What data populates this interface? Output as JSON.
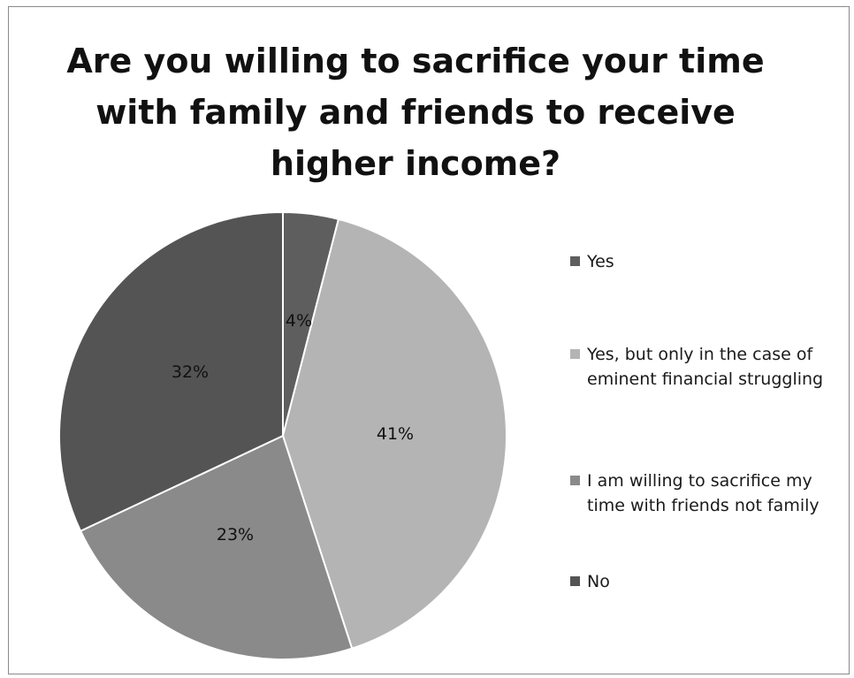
{
  "chart_data": {
    "type": "pie",
    "title": "Are you willing to sacrifice your time\nwith family and friends to receive\nhigher income?",
    "slices": [
      {
        "name": "Yes",
        "value": 4,
        "label": "4%",
        "color": "#5e5e5e"
      },
      {
        "name": "Yes, but only in the case of eminent financial struggling",
        "value": 41,
        "label": "41%",
        "color": "#b4b4b4"
      },
      {
        "name": "I am willing to sacrifice my time with friends not family",
        "value": 23,
        "label": "23%",
        "color": "#8a8a8a"
      },
      {
        "name": "No",
        "value": 32,
        "label": "32%",
        "color": "#545454"
      }
    ],
    "legend_position": "right"
  }
}
